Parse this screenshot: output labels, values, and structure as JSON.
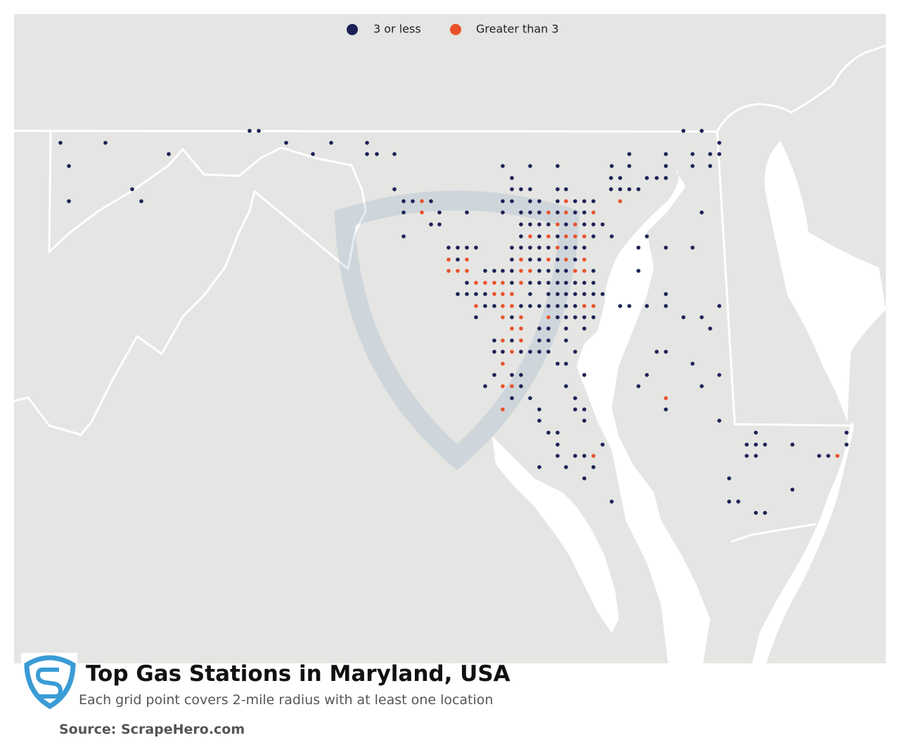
{
  "legend": {
    "items": [
      {
        "label": "3 or less",
        "color": "#1b2155"
      },
      {
        "label": "Greater than 3",
        "color": "#e8522a"
      }
    ]
  },
  "title": "Top Gas Stations in Maryland, USA",
  "subtitle": "Each grid point covers 2-mile radius with at least one location",
  "source": "Source: ScrapeHero.com"
}
